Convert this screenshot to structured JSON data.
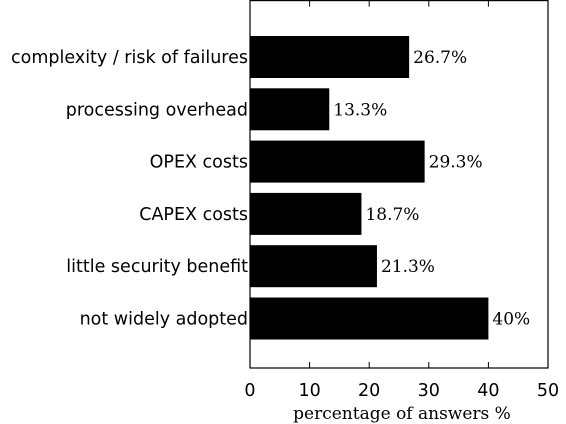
{
  "chart_data": {
    "type": "bar",
    "orientation": "horizontal",
    "categories": [
      "complexity / risk of failures",
      "processing overhead",
      "OPEX costs",
      "CAPEX costs",
      "little security benefit",
      "not widely adopted"
    ],
    "values": [
      26.7,
      13.3,
      29.3,
      18.7,
      21.3,
      40
    ],
    "value_labels": [
      "26.7%",
      "13.3%",
      "29.3%",
      "18.7%",
      "21.3%",
      "40%"
    ],
    "xlabel": "percentage of answers %",
    "xlim": [
      0,
      50
    ],
    "xticks": [
      0,
      10,
      20,
      30,
      40,
      50
    ],
    "xtick_labels": [
      "0",
      "10",
      "20",
      "30",
      "40",
      "50"
    ],
    "grid": false,
    "bar_color": "#000000"
  }
}
